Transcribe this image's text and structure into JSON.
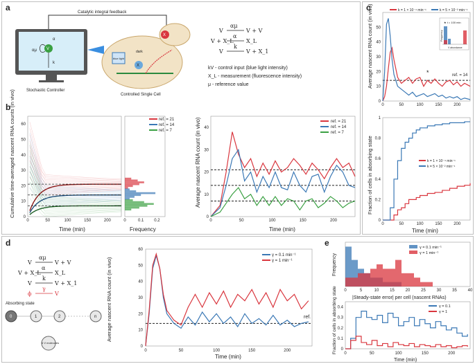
{
  "panels": {
    "a": {
      "label": "a",
      "feedback_label": "Catalytic integral feedback",
      "controller_caption": "Stochastic Controller",
      "cell_caption": "Controlled Single Cell",
      "node_v": "V",
      "alpha": "α",
      "alphamu": "αμ",
      "k": "k",
      "cell_light": "blue light",
      "cell_dark": "dark",
      "cell_x": "X",
      "reactions": [
        {
          "lhs": "V",
          "rate": "αμ",
          "rhs": "V + V"
        },
        {
          "lhs": "V + X_L",
          "rate": "α",
          "rhs": "X_L"
        },
        {
          "lhs": "V",
          "rate": "k",
          "rhs": "V + X_1"
        }
      ],
      "legend_lines": [
        "kV - control input (blue light intensity)",
        "X_L - measurement (fluorescence intensity)",
        "μ - reference value"
      ]
    },
    "b": {
      "label": "b",
      "ylabel_left": "Cumulative time-averaged nascent RNA counts (in vivo)",
      "xlabel_left": "Time (min)",
      "xlabel_mid": "Frequency",
      "ylabel_right": "Average nascent RNA count (in vivo)",
      "xlabel_right": "Time (min)",
      "legend": [
        "ref. = 21",
        "ref. = 14",
        "ref. = 7"
      ],
      "left_yticks": [
        "0",
        "10",
        "20",
        "30",
        "40",
        "50",
        "60"
      ],
      "left_xticks": [
        "0",
        "50",
        "100",
        "150",
        "200"
      ],
      "mid_xticks": [
        "0",
        "0.1",
        "0.2"
      ],
      "right_yticks": [
        "0",
        "10",
        "20",
        "30",
        "40"
      ],
      "right_xticks": [
        "0",
        "50",
        "100",
        "150",
        "200"
      ]
    },
    "c": {
      "label": "c",
      "ylabel_top": "Average nascent RNA count (in vivo)",
      "legend_top": [
        "k = 1 × 10⁻⁴ min⁻¹",
        "k = 5 × 10⁻² min⁻¹"
      ],
      "ref_label": "ref. = 14",
      "star": "*",
      "inset_title": "★ t = 100 min",
      "inset_ylabel": "Frequency",
      "inset_xlabel": "V abundance",
      "top_yticks": [
        "0",
        "10",
        "20",
        "30",
        "40",
        "50"
      ],
      "top_xticks": [
        "0",
        "50",
        "100",
        "150",
        "200"
      ],
      "ylabel_bottom": "Fraction of cells in absorbing state",
      "legend_bottom": [
        "k = 1 × 10⁻⁴ min⁻¹",
        "k = 5 × 10⁻² min⁻¹"
      ],
      "bottom_yticks": [
        "0",
        "0.2",
        "0.4",
        "0.6",
        "0.8",
        "1"
      ],
      "bottom_xticks": [
        "0",
        "50",
        "100",
        "150",
        "200"
      ],
      "xlabel_bottom": "Time (min)"
    },
    "d": {
      "label": "d",
      "reactions": [
        {
          "lhs": "V",
          "rate": "αμ",
          "rhs": "V + V"
        },
        {
          "lhs": "V + X_L",
          "rate": "α",
          "rhs": "X_L"
        },
        {
          "lhs": "V",
          "rate": "k",
          "rhs": "V + X_1"
        },
        {
          "lhs": "ϕ",
          "rate": "γ",
          "rhs": "V"
        }
      ],
      "absorbing_label": "Absorbing state",
      "chain_nodes": [
        "0",
        "1",
        "2",
        "n"
      ],
      "molecules_label": "# V molecules",
      "ylabel": "Average nascent RNA count (in vivo)",
      "xlabel": "Time (min)",
      "legend": [
        "γ = 0.1 min⁻¹",
        "γ = 1 min⁻¹"
      ],
      "ref_label": "ref.",
      "yticks": [
        "0",
        "10",
        "20",
        "30",
        "40",
        "50",
        "60"
      ],
      "xticks": [
        "0",
        "50",
        "100",
        "150",
        "200"
      ]
    },
    "e": {
      "label": "e",
      "ylabel_top": "Frequency",
      "xlabel_top": "|Steady-state error| per cell (nascent RNAs)",
      "legend_top": [
        "γ = 0.1 min⁻¹",
        "γ = 1 min⁻¹"
      ],
      "top_xticks": [
        "0",
        "5",
        "10",
        "15",
        "20",
        "25",
        "30",
        "35",
        "40"
      ],
      "ylabel_bottom": "Fraction of cells in absorbing state",
      "legend_bottom": [
        "γ = 0.1",
        "γ = 1"
      ],
      "bottom_yticks": [
        "0",
        "0.1",
        "0.2",
        "0.3",
        "0.4"
      ],
      "bottom_xticks": [
        "0",
        "50",
        "100",
        "150",
        "200"
      ],
      "xlabel_bottom": "Time (min)"
    }
  },
  "colors": {
    "red": "#d9363e",
    "blue": "#3a78b5",
    "green": "#3aa042",
    "dark": "#222222"
  },
  "chart_data": [
    {
      "type": "line",
      "panel": "b-right",
      "xlim": [
        0,
        235
      ],
      "ylim": [
        0,
        45
      ],
      "x": [
        0,
        15,
        25,
        35,
        45,
        55,
        65,
        75,
        85,
        95,
        105,
        115,
        125,
        135,
        145,
        155,
        165,
        175,
        185,
        195,
        205,
        215,
        225,
        235
      ],
      "series": [
        {
          "name": "ref. = 21",
          "values": [
            0,
            5,
            20,
            38,
            28,
            22,
            26,
            18,
            24,
            19,
            25,
            20,
            22,
            26,
            23,
            19,
            24,
            21,
            17,
            22,
            26,
            22,
            24,
            18
          ]
        },
        {
          "name": "ref. = 14",
          "values": [
            0,
            4,
            14,
            26,
            30,
            16,
            20,
            11,
            18,
            13,
            20,
            13,
            12,
            20,
            14,
            11,
            18,
            19,
            11,
            18,
            23,
            20,
            14,
            13
          ]
        },
        {
          "name": "ref. = 7",
          "values": [
            0,
            2,
            6,
            10,
            13,
            8,
            10,
            5,
            9,
            5,
            9,
            5,
            8,
            7,
            3,
            7,
            8,
            4,
            6,
            9,
            7,
            4,
            6,
            7
          ]
        }
      ],
      "reference_lines": [
        21,
        14,
        7
      ]
    },
    {
      "type": "line",
      "panel": "c-top",
      "xlim": [
        0,
        235
      ],
      "ylim": [
        0,
        60
      ],
      "x": [
        0,
        5,
        10,
        15,
        20,
        25,
        30,
        40,
        50,
        60,
        70,
        80,
        90,
        100,
        110,
        120,
        130,
        140,
        150,
        160,
        170,
        180,
        190,
        200,
        210,
        220,
        235
      ],
      "series": [
        {
          "name": "k = 1 × 10⁻⁴ min⁻¹",
          "values": [
            0,
            3,
            10,
            22,
            33,
            36,
            28,
            16,
            12,
            14,
            16,
            12,
            15,
            16,
            10,
            14,
            12,
            15,
            12,
            10,
            13,
            14,
            11,
            13,
            10,
            12,
            10
          ]
        },
        {
          "name": "k = 5 × 10⁻² min⁻¹",
          "values": [
            0,
            20,
            52,
            56,
            44,
            28,
            18,
            10,
            8,
            6,
            4,
            6,
            3,
            4,
            5,
            3,
            4,
            5,
            3,
            4,
            2,
            3,
            2,
            3,
            1,
            2,
            1
          ]
        }
      ],
      "reference_lines": [
        14
      ]
    },
    {
      "type": "line",
      "panel": "c-bottom",
      "xlim": [
        0,
        235
      ],
      "ylim": [
        0,
        1
      ],
      "x": [
        0,
        10,
        20,
        30,
        40,
        50,
        60,
        70,
        80,
        90,
        100,
        120,
        140,
        160,
        180,
        200,
        220,
        235
      ],
      "series": [
        {
          "name": "k = 1 × 10⁻⁴ min⁻¹",
          "values": [
            0,
            0,
            0,
            0.05,
            0.1,
            0.12,
            0.16,
            0.2,
            0.2,
            0.22,
            0.24,
            0.26,
            0.27,
            0.29,
            0.31,
            0.33,
            0.34,
            0.36
          ]
        },
        {
          "name": "k = 5 × 10⁻² min⁻¹",
          "values": [
            0,
            0,
            0.12,
            0.4,
            0.58,
            0.7,
            0.76,
            0.8,
            0.85,
            0.88,
            0.9,
            0.92,
            0.93,
            0.94,
            0.95,
            0.95,
            0.96,
            0.96
          ]
        }
      ]
    },
    {
      "type": "line",
      "panel": "d",
      "xlim": [
        0,
        235
      ],
      "ylim": [
        0,
        60
      ],
      "x": [
        0,
        5,
        10,
        15,
        20,
        25,
        30,
        40,
        50,
        60,
        70,
        80,
        90,
        100,
        110,
        120,
        130,
        140,
        150,
        160,
        170,
        180,
        190,
        200,
        210,
        220,
        230
      ],
      "series": [
        {
          "name": "γ = 0.1 min⁻¹",
          "values": [
            0,
            20,
            48,
            56,
            48,
            30,
            20,
            14,
            11,
            18,
            13,
            21,
            15,
            20,
            14,
            18,
            12,
            20,
            14,
            17,
            13,
            19,
            13,
            16,
            12,
            14,
            15
          ]
        },
        {
          "name": "γ = 1 min⁻¹",
          "values": [
            0,
            22,
            50,
            57,
            48,
            32,
            22,
            16,
            13,
            24,
            32,
            24,
            33,
            26,
            34,
            24,
            32,
            28,
            35,
            26,
            33,
            24,
            35,
            28,
            32,
            23,
            28
          ]
        }
      ],
      "reference_lines": [
        14
      ]
    },
    {
      "type": "bar",
      "panel": "e-top",
      "categories": [
        "0",
        "2",
        "4",
        "6",
        "8",
        "10",
        "12",
        "14",
        "16",
        "18",
        "20",
        "22",
        "24",
        "26",
        "28",
        "30",
        "32",
        "34",
        "36",
        "38"
      ],
      "series": [
        {
          "name": "γ = 0.1 min⁻¹",
          "values": [
            9,
            6,
            4,
            3,
            2,
            2,
            1,
            1,
            1,
            0,
            0,
            0,
            0,
            0,
            0,
            0,
            0,
            0,
            0,
            0
          ]
        },
        {
          "name": "γ = 1 min⁻¹",
          "values": [
            2,
            2,
            3,
            3,
            4,
            5,
            4,
            4,
            6,
            3,
            3,
            2,
            1,
            1,
            0,
            0,
            0,
            0,
            0,
            0
          ]
        }
      ]
    },
    {
      "type": "line",
      "panel": "e-bottom",
      "xlim": [
        0,
        235
      ],
      "ylim": [
        0,
        0.45
      ],
      "x": [
        0,
        10,
        20,
        30,
        40,
        50,
        60,
        70,
        80,
        90,
        100,
        110,
        120,
        130,
        140,
        150,
        160,
        170,
        180,
        190,
        200,
        210,
        220,
        230
      ],
      "series": [
        {
          "name": "γ = 0.1",
          "values": [
            0,
            0.1,
            0.3,
            0.36,
            0.3,
            0.28,
            0.32,
            0.25,
            0.34,
            0.3,
            0.22,
            0.26,
            0.3,
            0.22,
            0.28,
            0.24,
            0.2,
            0.26,
            0.22,
            0.18,
            0.2,
            0.15,
            0.12,
            0.14
          ]
        },
        {
          "name": "γ = 1",
          "values": [
            0,
            0.08,
            0.12,
            0.06,
            0.04,
            0.08,
            0.03,
            0.05,
            0.02,
            0.06,
            0.04,
            0.03,
            0.05,
            0.02,
            0.04,
            0.03,
            0.02,
            0.04,
            0.02,
            0.03,
            0.01,
            0.02,
            0.03,
            0.02
          ]
        }
      ]
    }
  ]
}
